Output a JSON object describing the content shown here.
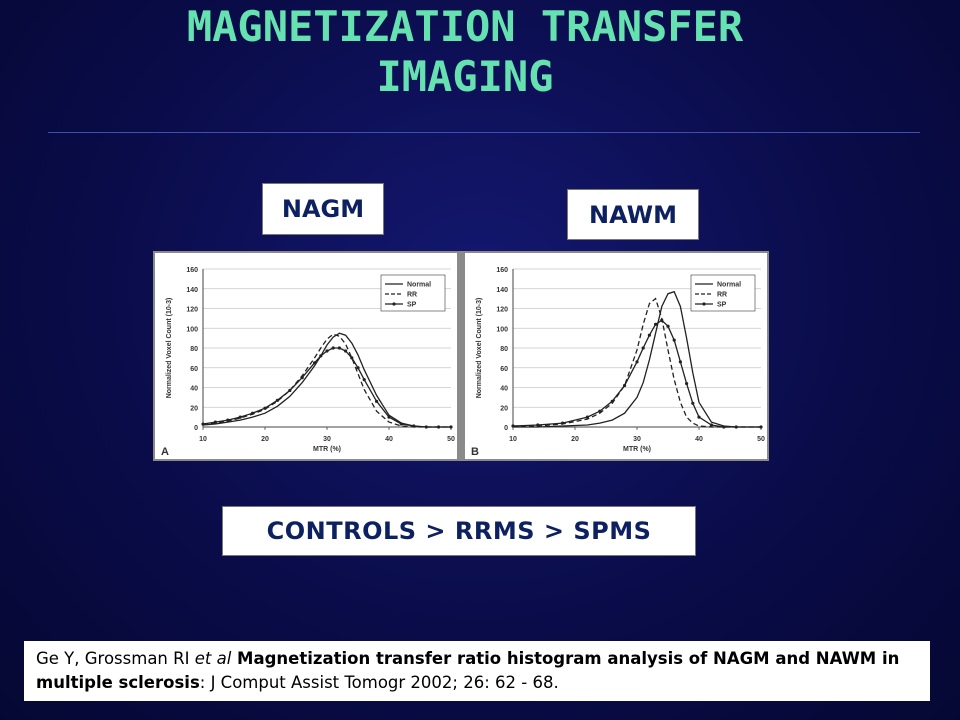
{
  "slide": {
    "title_line1": "MAGNETIZATION TRANSFER",
    "title_line2": "IMAGING",
    "label_left": "NAGM",
    "label_right": "NAWM",
    "controls_text": "CONTROLS > RRMS > SPMS",
    "citation": {
      "authors": "Ge Y, Grossman RI ",
      "etal": "et al",
      "title": " Magnetization transfer ratio histogram analysis of NAGM and NAWM in multiple sclerosis",
      "journal": ": J Comput Assist Tomogr 2002; 26: 62 - 68."
    }
  },
  "chart_data": [
    {
      "type": "line",
      "panel_label": "A",
      "xlabel": "MTR (%)",
      "ylabel": "Normalized Voxel Count (10-3)",
      "xlim": [
        10,
        50
      ],
      "ylim": [
        0,
        160
      ],
      "xticks": [
        10,
        20,
        30,
        40,
        50
      ],
      "yticks": [
        0,
        20,
        40,
        60,
        80,
        100,
        120,
        140,
        160
      ],
      "grid": true,
      "legend_position": "top-right",
      "x": [
        10,
        12,
        14,
        16,
        18,
        20,
        22,
        24,
        26,
        28,
        29,
        30,
        31,
        32,
        33,
        34,
        35,
        36,
        38,
        40,
        42,
        44,
        46,
        48,
        50
      ],
      "series": [
        {
          "name": "Normal",
          "style": "solid",
          "values": [
            2,
            3,
            5,
            7,
            10,
            14,
            21,
            31,
            45,
            62,
            72,
            83,
            91,
            95,
            93,
            85,
            73,
            58,
            32,
            12,
            4,
            1,
            0,
            0,
            0
          ]
        },
        {
          "name": "RR",
          "style": "dashed",
          "values": [
            3,
            4,
            6,
            9,
            13,
            18,
            26,
            37,
            52,
            70,
            80,
            89,
            94,
            92,
            84,
            70,
            54,
            38,
            16,
            5,
            1,
            0,
            0,
            0,
            0
          ]
        },
        {
          "name": "SP",
          "style": "solid-dots",
          "values": [
            3,
            5,
            7,
            10,
            14,
            19,
            27,
            37,
            50,
            65,
            72,
            77,
            80,
            80,
            77,
            70,
            60,
            48,
            26,
            10,
            3,
            1,
            0,
            0,
            0
          ]
        }
      ]
    },
    {
      "type": "line",
      "panel_label": "B",
      "xlabel": "MTR (%)",
      "ylabel": "Normalized Voxel Count (10-3)",
      "xlim": [
        10,
        50
      ],
      "ylim": [
        0,
        160
      ],
      "xticks": [
        10,
        20,
        30,
        40,
        50
      ],
      "yticks": [
        0,
        20,
        40,
        60,
        80,
        100,
        120,
        140,
        160
      ],
      "grid": true,
      "legend_position": "top-right",
      "x": [
        10,
        14,
        18,
        22,
        24,
        26,
        28,
        30,
        31,
        32,
        33,
        34,
        35,
        36,
        37,
        38,
        39,
        40,
        42,
        44,
        46,
        50
      ],
      "series": [
        {
          "name": "Normal",
          "style": "solid",
          "values": [
            0,
            0,
            1,
            2,
            4,
            7,
            14,
            30,
            45,
            68,
            95,
            122,
            135,
            137,
            122,
            90,
            55,
            25,
            5,
            1,
            0,
            0
          ]
        },
        {
          "name": "RR",
          "style": "dashed",
          "values": [
            1,
            1,
            3,
            8,
            14,
            24,
            42,
            78,
            104,
            125,
            130,
            110,
            78,
            48,
            25,
            10,
            4,
            1,
            0,
            0,
            0,
            0
          ]
        },
        {
          "name": "SP",
          "style": "solid-dots",
          "values": [
            1,
            2,
            4,
            10,
            16,
            26,
            42,
            66,
            80,
            93,
            104,
            108,
            102,
            88,
            66,
            44,
            24,
            10,
            2,
            0,
            0,
            0
          ]
        }
      ]
    }
  ],
  "colors": {
    "title": "#66e2b0",
    "box_text": "#0d2060",
    "background": "#0a0c4a"
  }
}
